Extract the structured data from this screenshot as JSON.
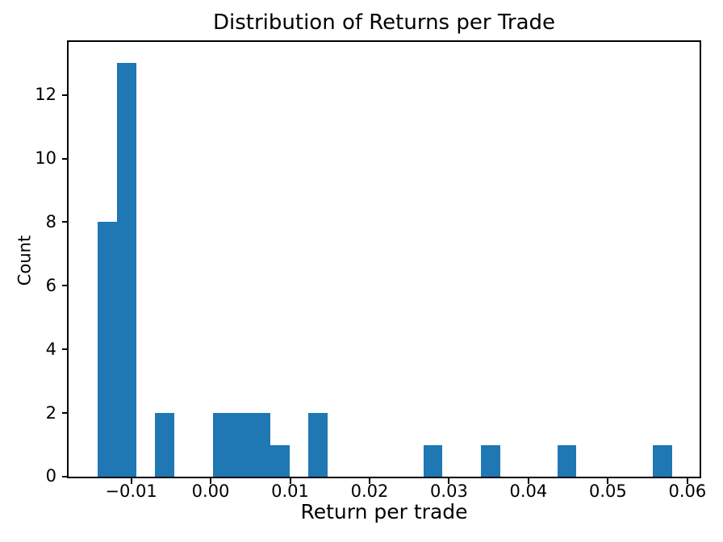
{
  "chart_data": {
    "type": "bar",
    "subtype": "histogram",
    "title": "Distribution of Returns per Trade",
    "xlabel": "Return per trade",
    "ylabel": "Count",
    "bar_color": "#1f77b4",
    "axis_color": "#000000",
    "background_color": "#ffffff",
    "bin_start": -0.0142,
    "bin_width": 0.00241,
    "bin_counts": [
      8,
      13,
      0,
      2,
      0,
      0,
      2,
      2,
      2,
      1,
      0,
      2,
      0,
      0,
      0,
      0,
      0,
      1,
      0,
      0,
      1,
      0,
      0,
      0,
      1,
      0,
      0,
      0,
      0,
      1
    ],
    "xlim": [
      -0.01798,
      0.06164
    ],
    "ylim": [
      0,
      13.69
    ],
    "x_ticks": [
      -0.01,
      0.0,
      0.01,
      0.02,
      0.03,
      0.04,
      0.05,
      0.06
    ],
    "x_tick_labels": [
      "−0.01",
      "0.00",
      "0.01",
      "0.02",
      "0.03",
      "0.04",
      "0.05",
      "0.06"
    ],
    "y_ticks": [
      0,
      2,
      4,
      6,
      8,
      10,
      12
    ],
    "y_tick_labels": [
      "0",
      "2",
      "4",
      "6",
      "8",
      "10",
      "12"
    ],
    "grid": false,
    "legend": false
  }
}
